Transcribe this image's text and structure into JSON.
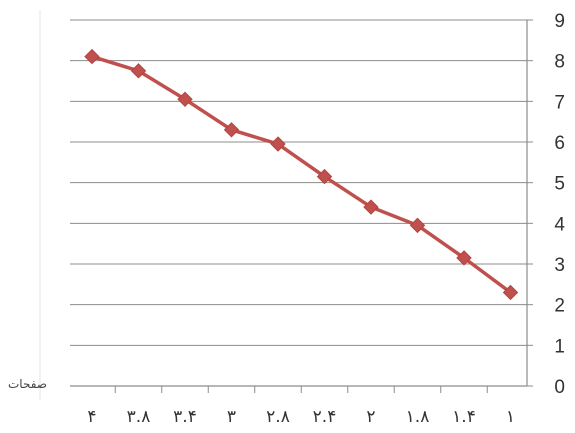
{
  "chart_data": {
    "type": "line",
    "categories": [
      "۴",
      "۳.۸",
      "۳.۴",
      "۳",
      "۲.۸",
      "۲.۴",
      "۲",
      "۱.۸",
      "۱.۴",
      "۱"
    ],
    "values": [
      8.1,
      7.75,
      7.05,
      6.3,
      5.95,
      5.15,
      4.4,
      3.95,
      3.15,
      2.3
    ],
    "xlabel": "صفحات",
    "ylabel": "",
    "ylim": [
      0,
      9
    ],
    "yticks": [
      "0",
      "1",
      "2",
      "3",
      "4",
      "5",
      "6",
      "7",
      "8",
      "9"
    ],
    "grid": true,
    "y_axis_side": "right",
    "series_color": "#c0504d",
    "marker": "diamond"
  }
}
